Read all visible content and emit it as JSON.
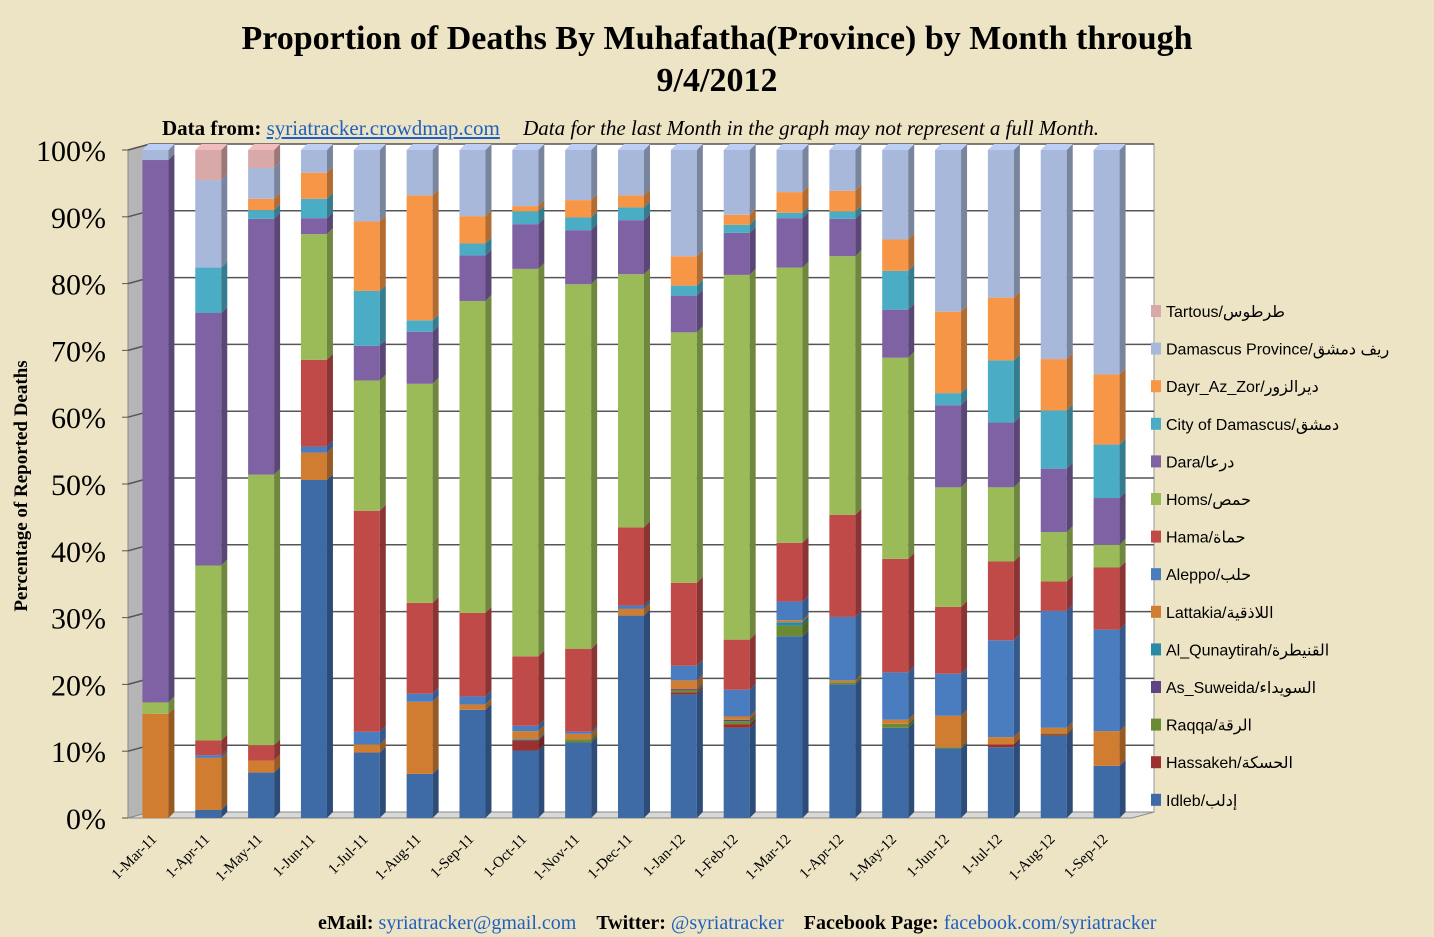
{
  "chart_data": {
    "type": "bar",
    "stacked": true,
    "normalized": true,
    "title": "Proportion of Deaths By Muhafatha(Province) by Month through 9/4/2012",
    "title_lines": [
      "Proportion of Deaths By Muhafatha(Province) by Month through",
      "9/4/2012"
    ],
    "xlabel": "",
    "ylabel": "Percentage of Reported Deaths",
    "ylim": [
      0,
      100
    ],
    "y_ticks": [
      "0%",
      "10%",
      "20%",
      "30%",
      "40%",
      "50%",
      "60%",
      "70%",
      "80%",
      "90%",
      "100%"
    ],
    "grid": true,
    "legend_position": "right",
    "categories": [
      "1-Mar-11",
      "1-Apr-11",
      "1-May-11",
      "1-Jun-11",
      "1-Jul-11",
      "1-Aug-11",
      "1-Sep-11",
      "1-Oct-11",
      "1-Nov-11",
      "1-Dec-11",
      "1-Jan-12",
      "1-Feb-12",
      "1-Mar-12",
      "1-Apr-12",
      "1-May-12",
      "1-Jun-12",
      "1-Jul-12",
      "1-Aug-12",
      "1-Sep-12"
    ],
    "series": [
      {
        "name": "Idleb/إدلب",
        "color": "#3e6aa6",
        "values": [
          0,
          1.2,
          6.8,
          50.6,
          9.8,
          6.6,
          16.2,
          10.1,
          11.3,
          30.3,
          18.5,
          13.5,
          27.2,
          20.0,
          13.5,
          10.4,
          10.6,
          12.3,
          7.8
        ]
      },
      {
        "name": "Hassakeh/الحسكة",
        "color": "#9c3030",
        "values": [
          0,
          0,
          0,
          0,
          0,
          0,
          0,
          1.5,
          0,
          0,
          0.3,
          0.5,
          0,
          0,
          0,
          0,
          0.4,
          0.2,
          0
        ]
      },
      {
        "name": "Raqqa/الرقة",
        "color": "#6a8a34",
        "values": [
          0,
          0,
          0,
          0,
          0,
          0,
          0,
          0,
          0.5,
          0,
          0.3,
          0.5,
          1.6,
          0.3,
          0.6,
          0.2,
          0,
          0.2,
          0
        ]
      },
      {
        "name": "As_Suweida/السويداء",
        "color": "#5e4480",
        "values": [
          0,
          0,
          0,
          0,
          0,
          0,
          0,
          0,
          0,
          0,
          0.2,
          0.2,
          0,
          0,
          0,
          0,
          0,
          0,
          0
        ]
      },
      {
        "name": "Al_Qunaytirah/القنيطرة",
        "color": "#2a8aa6",
        "values": [
          0,
          0,
          0,
          0,
          0,
          0,
          0,
          0.2,
          0,
          0,
          0,
          0,
          0.5,
          0,
          0,
          0,
          0,
          0,
          0
        ]
      },
      {
        "name": "Lattakia/اللاذقية",
        "color": "#d07d32",
        "values": [
          15.6,
          7.8,
          1.8,
          4.1,
          1.2,
          10.8,
          0.8,
          1.2,
          0.8,
          1.0,
          1.3,
          0.5,
          0.3,
          0.3,
          0.6,
          4.7,
          1.1,
          0.8,
          5.2
        ]
      },
      {
        "name": "Aleppo/حلب",
        "color": "#4a7cc0",
        "values": [
          0,
          0.4,
          0,
          0.9,
          1.9,
          1.2,
          1.2,
          0.8,
          0.3,
          0.5,
          2.2,
          4.0,
          2.8,
          9.5,
          7.1,
          6.3,
          14.5,
          17.5,
          15.2
        ]
      },
      {
        "name": "Hama/حماة",
        "color": "#c04a48",
        "values": [
          0,
          2.2,
          2.3,
          13.0,
          33.1,
          13.6,
          12.5,
          10.4,
          12.4,
          11.7,
          12.4,
          7.5,
          8.8,
          15.3,
          17.0,
          10.0,
          11.8,
          4.4,
          9.3
        ]
      },
      {
        "name": "Homs/حمص",
        "color": "#9bbb59",
        "values": [
          1.7,
          26.2,
          40.5,
          18.8,
          19.5,
          32.8,
          46.7,
          58.0,
          54.6,
          37.9,
          37.5,
          54.6,
          41.2,
          38.7,
          30.1,
          17.9,
          11.1,
          7.4,
          3.4
        ]
      },
      {
        "name": "Dara/درعا",
        "color": "#7e62a4",
        "values": [
          81.2,
          37.8,
          38.3,
          2.4,
          5.2,
          7.8,
          6.8,
          6.7,
          8.1,
          8.1,
          5.5,
          6.3,
          7.4,
          5.6,
          7.2,
          12.3,
          9.7,
          9.5,
          7.0
        ]
      },
      {
        "name": "City of Damascus/دمشق",
        "color": "#4bacc6",
        "values": [
          0,
          6.8,
          1.3,
          2.9,
          8.2,
          1.7,
          1.8,
          1.9,
          1.9,
          1.9,
          1.5,
          1.2,
          0.8,
          1.1,
          5.8,
          1.8,
          9.3,
          8.7,
          8.0
        ]
      },
      {
        "name": "Dayr_Az_Zor/ديرالزور",
        "color": "#f79646",
        "values": [
          0,
          0,
          1.7,
          3.9,
          10.4,
          18.7,
          4.1,
          0.8,
          2.6,
          1.8,
          4.4,
          1.5,
          3.1,
          3.1,
          4.7,
          12.2,
          9.4,
          7.7,
          10.5
        ]
      },
      {
        "name": "Damascus Province/ريف دمشق",
        "color": "#a8b8da",
        "values": [
          1.5,
          13.1,
          4.6,
          3.4,
          10.7,
          6.8,
          9.9,
          8.4,
          7.5,
          6.8,
          15.9,
          9.7,
          6.3,
          6.1,
          13.4,
          24.2,
          22.1,
          31.3,
          33.6
        ]
      },
      {
        "name": "Tartous/طرطوس",
        "color": "#d9a8a8",
        "values": [
          0,
          4.5,
          2.7,
          0,
          0,
          0,
          0,
          0,
          0,
          0,
          0,
          0,
          0,
          0,
          0,
          0,
          0,
          0,
          0
        ]
      }
    ]
  },
  "source": {
    "prefix": "Data  from:",
    "link": "syriatracker.crowdmap.com",
    "note": "Data for the last Month in the graph may not represent a full Month."
  },
  "footer": {
    "email_label": "eMail:",
    "email": "syriatracker@gmail.com",
    "twitter_label": "Twitter:",
    "twitter": "@syriatracker",
    "facebook_label": "Facebook Page:",
    "facebook": "facebook.com/syriatracker"
  }
}
